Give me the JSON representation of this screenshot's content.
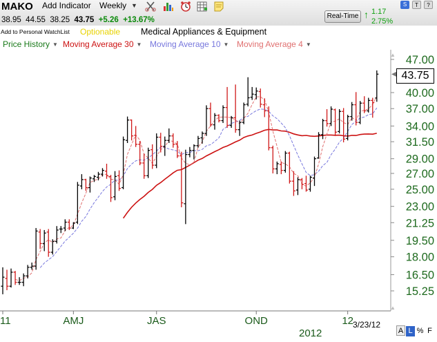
{
  "header": {
    "ticker": "MAKO",
    "add_indicator": "Add Indicator",
    "period": "Weekly",
    "open": "38.95",
    "high": "44.55",
    "low": "38.25",
    "last": "43.75",
    "change": "+5.26",
    "change_pct": "+13.67%",
    "watchlist_link": "Add to Personal WatchList",
    "optionable": "Optionable",
    "industry": "Medical Appliances & Equipment",
    "realtime_label": "Real-Time",
    "rt_change": "1.17",
    "rt_change_pct": "2.75%",
    "icons": [
      "scissors-tools-icon",
      "bar-chart-icon",
      "alarm-clock-icon",
      "calendar-grid-icon",
      "note-icon"
    ],
    "window_buttons": [
      "S",
      "T",
      "?"
    ]
  },
  "legend": {
    "items": [
      {
        "label": "Price History",
        "color": "#1a7a1a"
      },
      {
        "label": "Moving Average 30",
        "color": "#cc1111"
      },
      {
        "label": "Moving Average 10",
        "color": "#7777dd"
      },
      {
        "label": "Moving Average 4",
        "color": "#e07070"
      }
    ]
  },
  "footer": {
    "year": "2012",
    "date": "3/23/12",
    "buttons": [
      "A",
      "L",
      "%",
      "F"
    ]
  },
  "chart_data": {
    "type": "ohlc",
    "xlabel": "",
    "ylabel": "",
    "scale": "log",
    "ylim": [
      14.5,
      47.5
    ],
    "y_ticks": [
      "47.00",
      "43.75",
      "40.00",
      "37.00",
      "34.00",
      "31.50",
      "29.00",
      "27.00",
      "25.00",
      "23.00",
      "21.25",
      "19.50",
      "18.00",
      "16.50",
      "15.25"
    ],
    "x_ticks": [
      {
        "label": "11",
        "week": 0
      },
      {
        "label": "AMJ",
        "week": 17
      },
      {
        "label": "JAS",
        "week": 37
      },
      {
        "label": "OND",
        "week": 61
      },
      {
        "label": "12",
        "week": 83
      }
    ],
    "last_price": 43.75,
    "bars": [
      {
        "o": 15.6,
        "h": 17.1,
        "l": 15.0,
        "c": 16.3
      },
      {
        "o": 16.2,
        "h": 16.9,
        "l": 15.3,
        "c": 15.6
      },
      {
        "o": 15.6,
        "h": 17.0,
        "l": 15.5,
        "c": 16.7
      },
      {
        "o": 16.7,
        "h": 16.8,
        "l": 15.7,
        "c": 15.9
      },
      {
        "o": 15.9,
        "h": 16.3,
        "l": 15.7,
        "c": 15.9
      },
      {
        "o": 15.9,
        "h": 16.6,
        "l": 15.6,
        "c": 16.4
      },
      {
        "o": 16.4,
        "h": 17.3,
        "l": 16.2,
        "c": 17.1
      },
      {
        "o": 17.1,
        "h": 17.5,
        "l": 16.9,
        "c": 17.2
      },
      {
        "o": 17.2,
        "h": 20.7,
        "l": 16.9,
        "c": 20.4
      },
      {
        "o": 20.3,
        "h": 20.6,
        "l": 18.7,
        "c": 19.2
      },
      {
        "o": 19.2,
        "h": 20.5,
        "l": 18.5,
        "c": 20.2
      },
      {
        "o": 20.3,
        "h": 20.6,
        "l": 18.0,
        "c": 18.4
      },
      {
        "o": 18.4,
        "h": 19.6,
        "l": 18.2,
        "c": 19.4
      },
      {
        "o": 19.4,
        "h": 20.9,
        "l": 19.2,
        "c": 20.5
      },
      {
        "o": 20.6,
        "h": 20.9,
        "l": 20.2,
        "c": 20.6
      },
      {
        "o": 20.7,
        "h": 21.6,
        "l": 20.4,
        "c": 21.3
      },
      {
        "o": 21.3,
        "h": 21.6,
        "l": 20.5,
        "c": 20.7
      },
      {
        "o": 20.7,
        "h": 21.3,
        "l": 20.6,
        "c": 21.2
      },
      {
        "o": 21.3,
        "h": 25.9,
        "l": 21.1,
        "c": 25.5
      },
      {
        "o": 25.4,
        "h": 26.9,
        "l": 25.0,
        "c": 26.2
      },
      {
        "o": 26.2,
        "h": 26.3,
        "l": 24.8,
        "c": 25.2
      },
      {
        "o": 25.2,
        "h": 26.6,
        "l": 24.6,
        "c": 26.4
      },
      {
        "o": 26.3,
        "h": 26.8,
        "l": 25.9,
        "c": 26.6
      },
      {
        "o": 26.5,
        "h": 27.2,
        "l": 26.1,
        "c": 26.9
      },
      {
        "o": 26.9,
        "h": 27.7,
        "l": 26.6,
        "c": 27.4
      },
      {
        "o": 27.3,
        "h": 28.3,
        "l": 26.3,
        "c": 26.7
      },
      {
        "o": 26.6,
        "h": 26.8,
        "l": 23.5,
        "c": 24.0
      },
      {
        "o": 24.1,
        "h": 27.3,
        "l": 23.7,
        "c": 26.6
      },
      {
        "o": 26.7,
        "h": 27.4,
        "l": 24.8,
        "c": 25.1
      },
      {
        "o": 25.2,
        "h": 32.3,
        "l": 25.0,
        "c": 31.8
      },
      {
        "o": 31.7,
        "h": 35.6,
        "l": 31.3,
        "c": 35.0
      },
      {
        "o": 35.0,
        "h": 35.1,
        "l": 31.7,
        "c": 32.4
      },
      {
        "o": 32.5,
        "h": 34.0,
        "l": 30.7,
        "c": 31.1
      },
      {
        "o": 31.1,
        "h": 31.6,
        "l": 28.1,
        "c": 28.4
      },
      {
        "o": 28.4,
        "h": 29.7,
        "l": 26.3,
        "c": 26.7
      },
      {
        "o": 26.7,
        "h": 30.6,
        "l": 26.4,
        "c": 30.2
      },
      {
        "o": 30.3,
        "h": 31.1,
        "l": 27.6,
        "c": 28.1
      },
      {
        "o": 28.1,
        "h": 32.8,
        "l": 27.7,
        "c": 32.2
      },
      {
        "o": 32.2,
        "h": 32.9,
        "l": 29.9,
        "c": 30.8
      },
      {
        "o": 30.8,
        "h": 32.3,
        "l": 29.4,
        "c": 31.7
      },
      {
        "o": 31.7,
        "h": 33.6,
        "l": 31.3,
        "c": 32.4
      },
      {
        "o": 32.4,
        "h": 32.8,
        "l": 30.6,
        "c": 31.1
      },
      {
        "o": 31.1,
        "h": 31.6,
        "l": 29.1,
        "c": 29.4
      },
      {
        "o": 29.4,
        "h": 30.0,
        "l": 22.9,
        "c": 23.4
      },
      {
        "o": 23.3,
        "h": 30.3,
        "l": 21.1,
        "c": 29.6
      },
      {
        "o": 29.6,
        "h": 30.7,
        "l": 29.2,
        "c": 30.2
      },
      {
        "o": 30.2,
        "h": 31.1,
        "l": 28.9,
        "c": 30.9
      },
      {
        "o": 30.9,
        "h": 32.4,
        "l": 30.6,
        "c": 32.0
      },
      {
        "o": 32.1,
        "h": 33.1,
        "l": 31.2,
        "c": 32.8
      },
      {
        "o": 32.8,
        "h": 37.6,
        "l": 32.4,
        "c": 37.0
      },
      {
        "o": 37.0,
        "h": 38.1,
        "l": 33.9,
        "c": 34.2
      },
      {
        "o": 34.2,
        "h": 36.2,
        "l": 33.4,
        "c": 35.8
      },
      {
        "o": 35.8,
        "h": 36.0,
        "l": 34.6,
        "c": 34.9
      },
      {
        "o": 34.9,
        "h": 37.6,
        "l": 34.5,
        "c": 37.2
      },
      {
        "o": 37.2,
        "h": 41.1,
        "l": 33.7,
        "c": 34.1
      },
      {
        "o": 34.1,
        "h": 35.7,
        "l": 33.7,
        "c": 35.4
      },
      {
        "o": 35.4,
        "h": 41.6,
        "l": 32.9,
        "c": 33.4
      },
      {
        "o": 33.4,
        "h": 34.9,
        "l": 32.4,
        "c": 34.6
      },
      {
        "o": 34.6,
        "h": 38.1,
        "l": 34.3,
        "c": 37.7
      },
      {
        "o": 37.8,
        "h": 43.1,
        "l": 37.4,
        "c": 39.0
      },
      {
        "o": 39.1,
        "h": 41.1,
        "l": 38.6,
        "c": 39.7
      },
      {
        "o": 39.6,
        "h": 41.0,
        "l": 38.7,
        "c": 40.3
      },
      {
        "o": 40.2,
        "h": 40.8,
        "l": 37.2,
        "c": 37.8
      },
      {
        "o": 37.7,
        "h": 38.9,
        "l": 35.5,
        "c": 36.6
      },
      {
        "o": 36.6,
        "h": 37.4,
        "l": 30.2,
        "c": 30.6
      },
      {
        "o": 30.6,
        "h": 30.9,
        "l": 27.0,
        "c": 27.6
      },
      {
        "o": 27.6,
        "h": 28.6,
        "l": 26.9,
        "c": 28.3
      },
      {
        "o": 28.2,
        "h": 28.6,
        "l": 26.9,
        "c": 27.4
      },
      {
        "o": 27.4,
        "h": 30.1,
        "l": 27.1,
        "c": 29.8
      },
      {
        "o": 29.8,
        "h": 30.0,
        "l": 25.7,
        "c": 26.0
      },
      {
        "o": 26.0,
        "h": 27.3,
        "l": 24.2,
        "c": 24.8
      },
      {
        "o": 24.9,
        "h": 26.5,
        "l": 24.3,
        "c": 26.2
      },
      {
        "o": 26.2,
        "h": 26.4,
        "l": 25.0,
        "c": 25.6
      },
      {
        "o": 25.7,
        "h": 26.7,
        "l": 24.7,
        "c": 24.9
      },
      {
        "o": 25.0,
        "h": 26.7,
        "l": 24.7,
        "c": 26.5
      },
      {
        "o": 26.4,
        "h": 29.3,
        "l": 25.4,
        "c": 29.0
      },
      {
        "o": 29.1,
        "h": 33.0,
        "l": 29.0,
        "c": 32.6
      },
      {
        "o": 32.6,
        "h": 35.2,
        "l": 31.9,
        "c": 34.9
      },
      {
        "o": 34.9,
        "h": 36.9,
        "l": 33.9,
        "c": 34.4
      },
      {
        "o": 34.4,
        "h": 37.4,
        "l": 34.0,
        "c": 36.9
      },
      {
        "o": 36.8,
        "h": 37.0,
        "l": 32.4,
        "c": 33.0
      },
      {
        "o": 33.1,
        "h": 36.9,
        "l": 32.8,
        "c": 36.5
      },
      {
        "o": 36.5,
        "h": 37.1,
        "l": 31.4,
        "c": 31.9
      },
      {
        "o": 32.0,
        "h": 35.9,
        "l": 31.7,
        "c": 35.6
      },
      {
        "o": 35.6,
        "h": 38.2,
        "l": 34.9,
        "c": 37.7
      },
      {
        "o": 37.7,
        "h": 40.1,
        "l": 34.1,
        "c": 34.6
      },
      {
        "o": 34.6,
        "h": 38.4,
        "l": 34.3,
        "c": 38.0
      },
      {
        "o": 38.0,
        "h": 39.3,
        "l": 36.2,
        "c": 36.6
      },
      {
        "o": 36.6,
        "h": 39.0,
        "l": 36.3,
        "c": 38.5
      },
      {
        "o": 38.5,
        "h": 39.0,
        "l": 35.4,
        "c": 38.1
      },
      {
        "o": 38.95,
        "h": 44.55,
        "l": 38.25,
        "c": 43.75
      }
    ]
  }
}
